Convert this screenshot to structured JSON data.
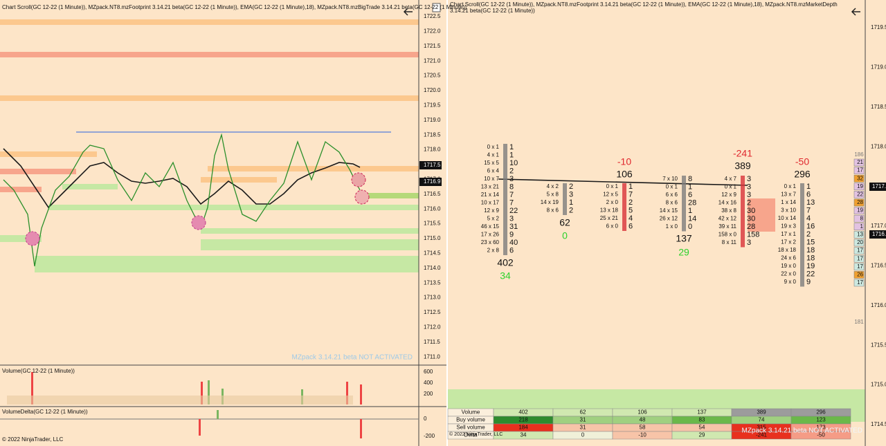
{
  "left": {
    "title": "Chart Scroll(GC 12-22 (1 Minute)), MZpack.NT8.mzFootprint 3.14.21 beta(GC 12-22 (1 Minute)), EMA(GC 12-22 (1 Minute),18), MZpack.NT8.mzBigTrade 3.14.21 beta(GC 12-22 (1 Minute))",
    "prices": [
      "1722.5",
      "1722.0",
      "1721.5",
      "1721.0",
      "1720.5",
      "1720.0",
      "1719.5",
      "1719.0",
      "1718.5",
      "1718.0",
      "1717.5",
      "1717.0",
      "1716.5",
      "1716.0",
      "1715.5",
      "1715.0",
      "1714.5",
      "1714.0",
      "1713.5",
      "1713.0",
      "1712.5",
      "1712.0",
      "1711.5",
      "1711.0"
    ],
    "last_price": "1717.5",
    "bid_price": "1716.9",
    "watermark": "MZpack 3.14.21 beta NOT ACTIVATED",
    "volume_title": "Volume(GC 12-22 (1 Minute))",
    "volume_ticks": [
      "600",
      "400",
      "200"
    ],
    "delta_title": "VolumeDelta(GC 12-22 (1 Minute))",
    "delta_ticks": [
      "0",
      "-200"
    ],
    "copyright": "© 2022 NinjaTrader, LLC"
  },
  "right": {
    "title": "Chart Scroll(GC 12-22 (1 Minute)), MZpack.NT8.mzFootprint 3.14.21 beta(GC 12-22 (1 Minute)), EMA(GC 12-22 (1 Minute),18), MZpack.NT8.mzMarketDepth 3.14.21 beta(GC 12-22 (1 Minute))",
    "prices": [
      "1719.5",
      "1719.0",
      "1718.5",
      "1718.0",
      "1717.5",
      "1717.0",
      "1716.5",
      "1716.0",
      "1715.5",
      "1715.0",
      "1714.5"
    ],
    "last_price": "1717.",
    "bid_price": "1716.",
    "clusters": [
      {
        "delta": 34,
        "total": 402,
        "rows": [
          [
            "0 x 1",
            "1"
          ],
          [
            "4 x 1",
            "1"
          ],
          [
            "15 x 5",
            "10"
          ],
          [
            "6 x 4",
            "2"
          ],
          [
            "10 x 7",
            "3"
          ],
          [
            "13 x 21",
            "8"
          ],
          [
            "21 x 14",
            "7"
          ],
          [
            "10 x 17",
            "7"
          ],
          [
            "12 x 9",
            "22"
          ],
          [
            "5 x 2",
            "3"
          ],
          [
            "46 x 15",
            "31"
          ],
          [
            "17 x 26",
            "9"
          ],
          [
            "23 x 60",
            "40"
          ],
          [
            "2 x 8",
            "6"
          ]
        ]
      },
      {
        "delta": 0,
        "total": 62,
        "rows": [
          [
            "4 x 2",
            "2"
          ],
          [
            "5 x 8",
            "3"
          ],
          [
            "14 x 19",
            "1"
          ],
          [
            "8 x 6",
            "2"
          ]
        ]
      },
      {
        "delta": -10,
        "total": 106,
        "rows": [
          [
            "0 x 1",
            "1"
          ],
          [
            "12 x 5",
            "7"
          ],
          [
            "2 x 0",
            "2"
          ],
          [
            "13 x 18",
            "5"
          ],
          [
            "25 x 21",
            "4"
          ],
          [
            "6 x 0",
            "6"
          ]
        ]
      },
      {
        "delta": 29,
        "total": 137,
        "rows": [
          [
            "7 x 10",
            "8"
          ],
          [
            "0 x 1",
            "1"
          ],
          [
            "6 x 6",
            "6"
          ],
          [
            "8 x 6",
            "28"
          ],
          [
            "14 x 15",
            "1"
          ],
          [
            "26 x 12",
            "14"
          ],
          [
            "1 x 0",
            "0"
          ]
        ]
      },
      {
        "delta": -241,
        "total": 389,
        "rows": [
          [
            "4 x 7",
            "3"
          ],
          [
            "0 x 1",
            "3"
          ],
          [
            "12 x 9",
            "3"
          ],
          [
            "14 x 16",
            "2"
          ],
          [
            "38 x 8",
            "30"
          ],
          [
            "42 x 12",
            "30"
          ],
          [
            "39 x 11",
            "28"
          ],
          [
            "158 x 0",
            "158"
          ],
          [
            "8 x 11",
            "3"
          ]
        ]
      },
      {
        "delta": -50,
        "total": 296,
        "rows": [
          [
            "0 x 1",
            "1"
          ],
          [
            "13 x 7",
            "6"
          ],
          [
            "1 x 14",
            "13"
          ],
          [
            "3 x 10",
            "7"
          ],
          [
            "10 x 14",
            "4"
          ],
          [
            "19 x 3",
            "16"
          ],
          [
            "17 x 1",
            "2"
          ],
          [
            "17 x 2",
            "15"
          ],
          [
            "18 x 18",
            "18"
          ],
          [
            "24 x 6",
            "18"
          ],
          [
            "19 x 0",
            "19"
          ],
          [
            "22 x 0",
            "22"
          ],
          [
            "9 x 0",
            "9"
          ]
        ]
      }
    ],
    "depth_top": "186",
    "depth": [
      "21",
      "17",
      "32",
      "19",
      "22",
      "28",
      "19",
      "8",
      "1",
      "13",
      "20",
      "17",
      "17",
      "17",
      "26",
      "17"
    ],
    "depth_bottom": "181",
    "table": {
      "labels": [
        "Volume",
        "Buy volume",
        "Sell volume",
        "Delta"
      ],
      "rows": [
        [
          402,
          62,
          106,
          137,
          389,
          296
        ],
        [
          218,
          31,
          48,
          83,
          74,
          123
        ],
        [
          184,
          31,
          58,
          54,
          315,
          173
        ],
        [
          34,
          0,
          -10,
          29,
          -241,
          -50
        ]
      ]
    },
    "watermark": "MZpack 3.14.21 beta NOT ACTIVATED",
    "copyright": "© 2022 NinjaTrader, LLC"
  }
}
